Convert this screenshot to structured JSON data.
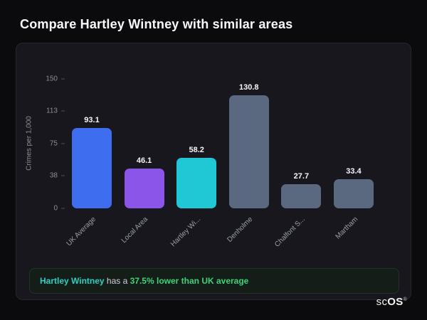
{
  "page_title": "Compare Hartley Wintney with similar areas",
  "chart_data": {
    "type": "bar",
    "categories": [
      "UK Average",
      "Local Area",
      "Hartley Wi...",
      "Denholme",
      "Chalfont S...",
      "Martham"
    ],
    "values": [
      93.1,
      46.1,
      58.2,
      130.8,
      27.7,
      33.4
    ],
    "value_labels": [
      "93.1",
      "46.1",
      "58.2",
      "130.8",
      "27.7",
      "33.4"
    ],
    "bar_colors": [
      "#3e6df0",
      "#8a55e8",
      "#20c7d4",
      "#5b6980",
      "#5b6980",
      "#5b6980"
    ],
    "title": "",
    "xlabel": "",
    "ylabel": "Crimes per 1,000",
    "ytick_labels": [
      "0",
      "38",
      "75",
      "113",
      "150"
    ],
    "yticks": [
      0,
      38,
      75,
      113,
      150
    ],
    "ylim": [
      0,
      150
    ],
    "grid": false,
    "legend": "none"
  },
  "note": {
    "name": "Hartley Wintney",
    "middle": " has a ",
    "stat": "37.5% lower than UK average",
    "name_color": "#2cd0c0",
    "stat_color": "#3bd476"
  },
  "logo": {
    "prefix": "sc",
    "suffix": "OS",
    "mark": "®"
  }
}
